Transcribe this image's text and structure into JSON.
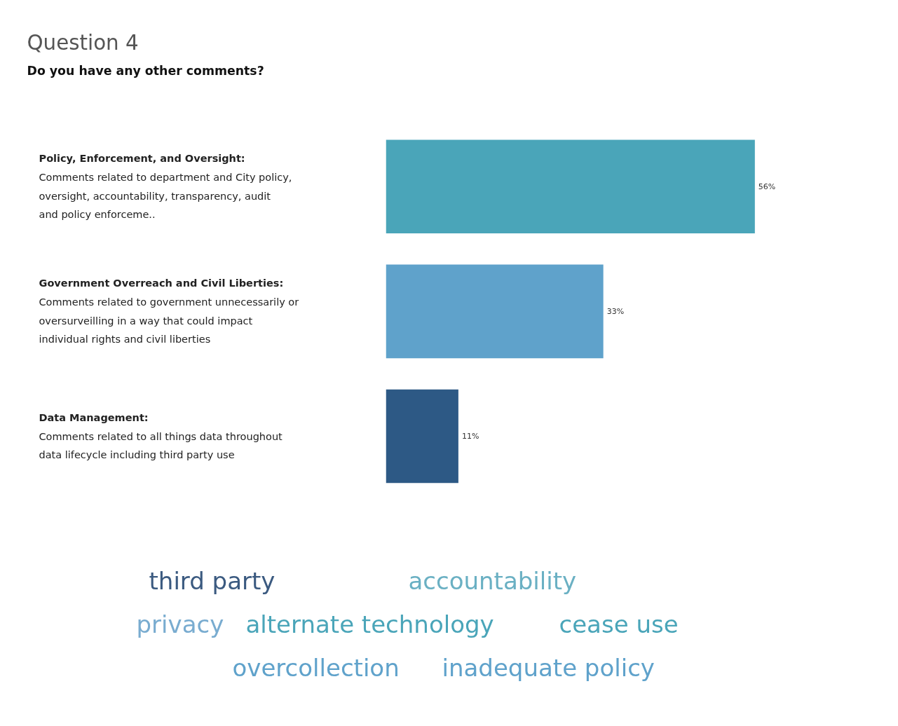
{
  "chart_data": {
    "type": "bar",
    "orientation": "horizontal",
    "title": "Question 4",
    "subtitle": "Do you have any other comments?",
    "categories": [
      "Policy, Enforcement, and Oversight: Comments related to department and City policy, oversight, accountability, transparency, audit and policy enforceme..",
      "Government Overreach and Civil Liberties: Comments related to government unnecessarily or oversurveilling in a way that could impact individual rights and civil liberties",
      "Data Management: Comments related to all things data throughout data lifecycle including third party use"
    ],
    "values": [
      56,
      33,
      11
    ],
    "colors": [
      "#4aa5b9",
      "#5fa2cb",
      "#2d5985"
    ],
    "value_labels": [
      "56%",
      "33%",
      "11%"
    ],
    "annotations": [
      "third party",
      "accountability",
      "privacy",
      "alternate technology",
      "cease use",
      "overcollection",
      "inadequate policy"
    ]
  }
}
